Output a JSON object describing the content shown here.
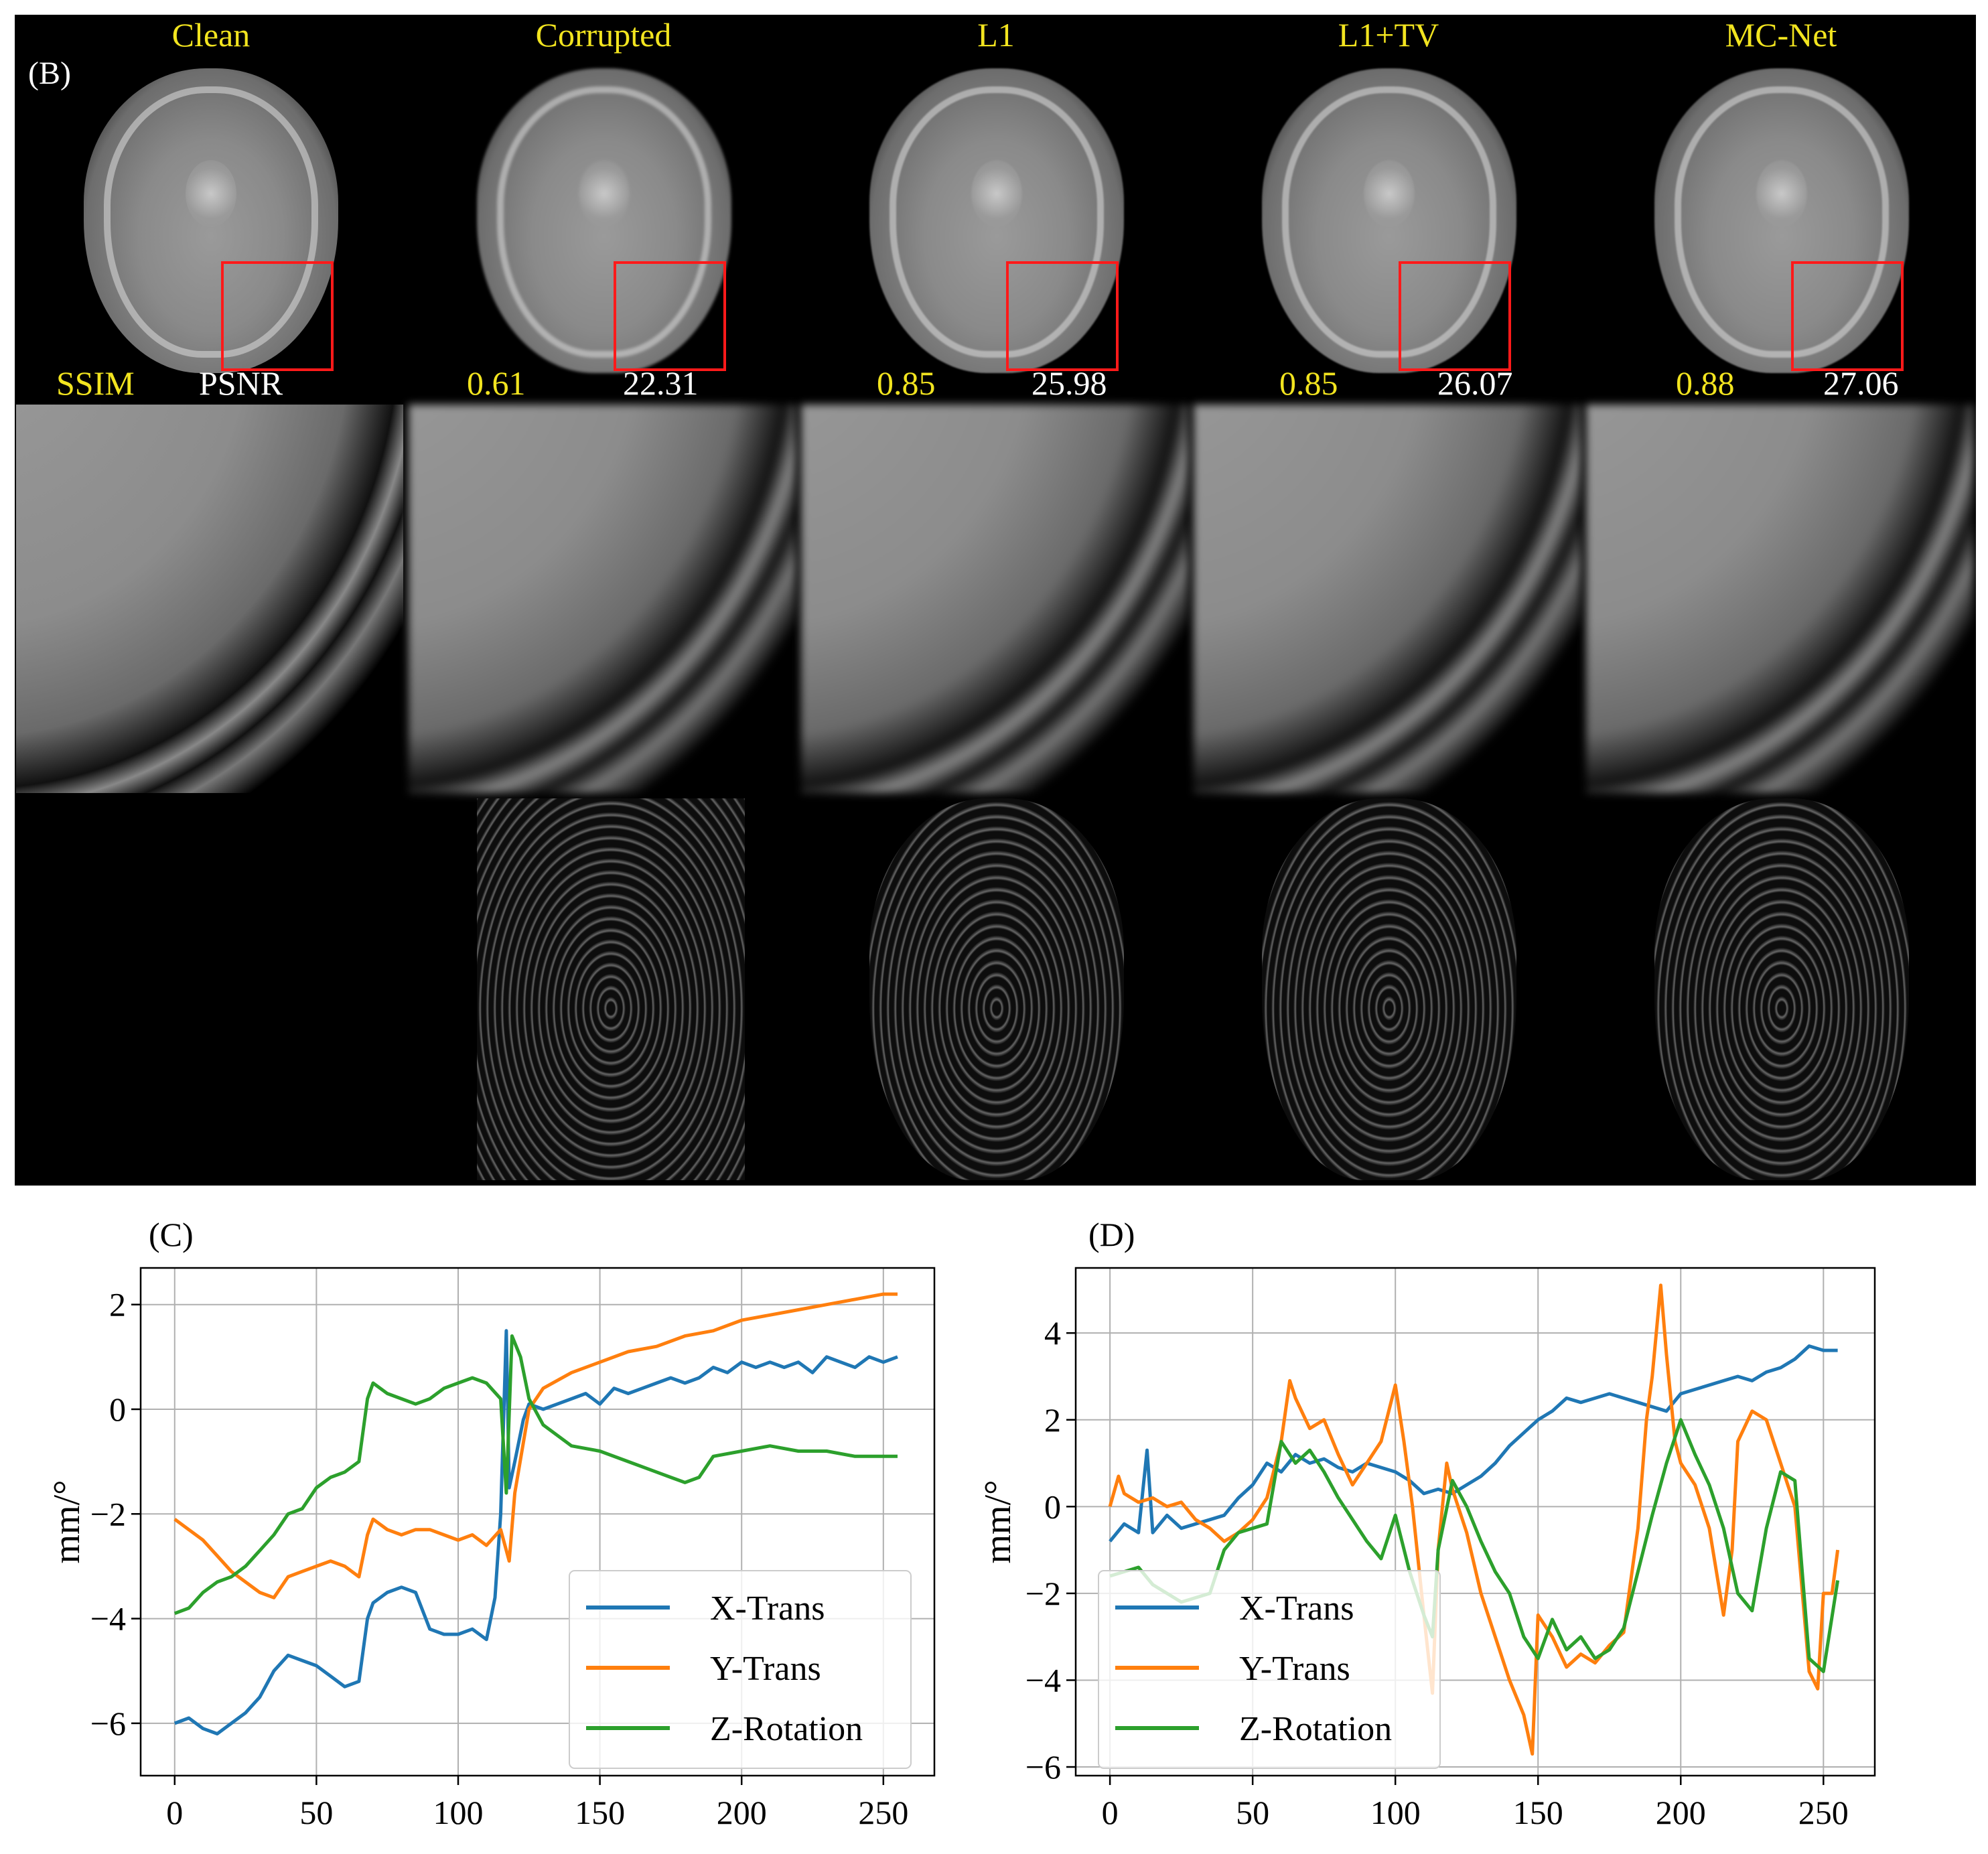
{
  "panel_b": {
    "label": "(B)",
    "columns": [
      {
        "title": "Clean",
        "ssim": "SSIM",
        "psnr": "PSNR"
      },
      {
        "title": "Corrupted",
        "ssim": "0.61",
        "psnr": "22.31"
      },
      {
        "title": "L1",
        "ssim": "0.85",
        "psnr": "25.98"
      },
      {
        "title": "L1+TV",
        "ssim": "0.85",
        "psnr": "26.07"
      },
      {
        "title": "MC-Net",
        "ssim": "0.88",
        "psnr": "27.06"
      }
    ]
  },
  "colors": {
    "x_trans": "#1f77b4",
    "y_trans": "#ff7f0e",
    "z_rotation": "#2ca02c",
    "title_yellow": "#f2e41f",
    "roi_red": "#ff1a1a"
  },
  "chart_data": [
    {
      "panel_label": "(C)",
      "type": "line",
      "xlabel": "",
      "ylabel": "mm/°",
      "xlim": [
        -12,
        268
      ],
      "ylim": [
        -7,
        2.7
      ],
      "xticks": [
        0,
        50,
        100,
        150,
        200,
        250
      ],
      "yticks": [
        -6,
        -4,
        -2,
        0,
        2
      ],
      "grid": true,
      "legend": "lower-right",
      "series": [
        {
          "name": "X-Trans",
          "color": "#1f77b4",
          "x": [
            0,
            5,
            10,
            15,
            20,
            25,
            30,
            35,
            40,
            45,
            50,
            55,
            60,
            65,
            68,
            70,
            75,
            80,
            85,
            90,
            95,
            100,
            105,
            110,
            113,
            115,
            117,
            118,
            120,
            123,
            125,
            130,
            135,
            140,
            145,
            150,
            155,
            160,
            165,
            170,
            175,
            180,
            185,
            190,
            195,
            200,
            205,
            210,
            215,
            220,
            225,
            230,
            235,
            240,
            245,
            250,
            255
          ],
          "y": [
            -6.0,
            -5.9,
            -6.1,
            -6.2,
            -6.0,
            -5.8,
            -5.5,
            -5.0,
            -4.7,
            -4.8,
            -4.9,
            -5.1,
            -5.3,
            -5.2,
            -4.0,
            -3.7,
            -3.5,
            -3.4,
            -3.5,
            -4.2,
            -4.3,
            -4.3,
            -4.2,
            -4.4,
            -3.6,
            -2.0,
            1.5,
            -1.5,
            -1.0,
            -0.2,
            0.1,
            0.0,
            0.1,
            0.2,
            0.3,
            0.1,
            0.4,
            0.3,
            0.4,
            0.5,
            0.6,
            0.5,
            0.6,
            0.8,
            0.7,
            0.9,
            0.8,
            0.9,
            0.8,
            0.9,
            0.7,
            1.0,
            0.9,
            0.8,
            1.0,
            0.9,
            1.0
          ]
        },
        {
          "name": "Y-Trans",
          "color": "#ff7f0e",
          "x": [
            0,
            5,
            10,
            15,
            20,
            25,
            30,
            35,
            40,
            45,
            50,
            55,
            60,
            65,
            68,
            70,
            75,
            80,
            85,
            90,
            95,
            100,
            105,
            110,
            115,
            118,
            120,
            125,
            130,
            140,
            150,
            160,
            170,
            180,
            190,
            200,
            210,
            220,
            230,
            240,
            250,
            255
          ],
          "y": [
            -2.1,
            -2.3,
            -2.5,
            -2.8,
            -3.1,
            -3.3,
            -3.5,
            -3.6,
            -3.2,
            -3.1,
            -3.0,
            -2.9,
            -3.0,
            -3.2,
            -2.4,
            -2.1,
            -2.3,
            -2.4,
            -2.3,
            -2.3,
            -2.4,
            -2.5,
            -2.4,
            -2.6,
            -2.3,
            -2.9,
            -1.6,
            0.0,
            0.4,
            0.7,
            0.9,
            1.1,
            1.2,
            1.4,
            1.5,
            1.7,
            1.8,
            1.9,
            2.0,
            2.1,
            2.2,
            2.2
          ]
        },
        {
          "name": "Z-Rotation",
          "color": "#2ca02c",
          "x": [
            0,
            5,
            10,
            15,
            20,
            25,
            30,
            35,
            40,
            45,
            50,
            55,
            60,
            65,
            68,
            70,
            75,
            80,
            85,
            90,
            95,
            100,
            105,
            110,
            115,
            117,
            119,
            122,
            125,
            130,
            140,
            150,
            160,
            170,
            175,
            180,
            185,
            190,
            200,
            210,
            220,
            230,
            240,
            250,
            255
          ],
          "y": [
            -3.9,
            -3.8,
            -3.5,
            -3.3,
            -3.2,
            -3.0,
            -2.7,
            -2.4,
            -2.0,
            -1.9,
            -1.5,
            -1.3,
            -1.2,
            -1.0,
            0.2,
            0.5,
            0.3,
            0.2,
            0.1,
            0.2,
            0.4,
            0.5,
            0.6,
            0.5,
            0.2,
            -1.6,
            1.4,
            1.0,
            0.2,
            -0.3,
            -0.7,
            -0.8,
            -1.0,
            -1.2,
            -1.3,
            -1.4,
            -1.3,
            -0.9,
            -0.8,
            -0.7,
            -0.8,
            -0.8,
            -0.9,
            -0.9,
            -0.9
          ]
        }
      ]
    },
    {
      "panel_label": "(D)",
      "type": "line",
      "xlabel": "",
      "ylabel": "mm/°",
      "xlim": [
        -12,
        268
      ],
      "ylim": [
        -6.2,
        5.5
      ],
      "xticks": [
        0,
        50,
        100,
        150,
        200,
        250
      ],
      "yticks": [
        -6,
        -4,
        -2,
        0,
        2,
        4
      ],
      "grid": true,
      "legend": "lower-left",
      "series": [
        {
          "name": "X-Trans",
          "color": "#1f77b4",
          "x": [
            0,
            5,
            10,
            13,
            15,
            20,
            25,
            30,
            35,
            40,
            45,
            50,
            55,
            60,
            65,
            70,
            75,
            80,
            85,
            90,
            95,
            100,
            105,
            110,
            115,
            120,
            125,
            130,
            135,
            140,
            145,
            150,
            155,
            160,
            165,
            170,
            175,
            180,
            185,
            190,
            195,
            200,
            205,
            210,
            215,
            220,
            225,
            230,
            235,
            240,
            245,
            250,
            255
          ],
          "y": [
            -0.8,
            -0.4,
            -0.6,
            1.3,
            -0.6,
            -0.2,
            -0.5,
            -0.4,
            -0.3,
            -0.2,
            0.2,
            0.5,
            1.0,
            0.8,
            1.2,
            1.0,
            1.1,
            0.9,
            0.8,
            1.0,
            0.9,
            0.8,
            0.6,
            0.3,
            0.4,
            0.3,
            0.5,
            0.7,
            1.0,
            1.4,
            1.7,
            2.0,
            2.2,
            2.5,
            2.4,
            2.5,
            2.6,
            2.5,
            2.4,
            2.3,
            2.2,
            2.6,
            2.7,
            2.8,
            2.9,
            3.0,
            2.9,
            3.1,
            3.2,
            3.4,
            3.7,
            3.6,
            3.6
          ]
        },
        {
          "name": "Y-Trans",
          "color": "#ff7f0e",
          "x": [
            0,
            3,
            5,
            10,
            15,
            20,
            25,
            30,
            35,
            40,
            45,
            50,
            55,
            60,
            63,
            65,
            70,
            75,
            80,
            85,
            90,
            95,
            100,
            103,
            106,
            110,
            113,
            115,
            118,
            120,
            125,
            130,
            135,
            140,
            145,
            148,
            150,
            155,
            160,
            165,
            170,
            175,
            180,
            185,
            188,
            190,
            193,
            195,
            198,
            200,
            205,
            210,
            215,
            218,
            220,
            225,
            230,
            235,
            240,
            245,
            248,
            250,
            253,
            255
          ],
          "y": [
            0.0,
            0.7,
            0.3,
            0.1,
            0.2,
            0.0,
            0.1,
            -0.3,
            -0.5,
            -0.8,
            -0.6,
            -0.3,
            0.2,
            1.5,
            2.9,
            2.5,
            1.8,
            2.0,
            1.2,
            0.5,
            1.0,
            1.5,
            2.8,
            1.5,
            0.0,
            -2.5,
            -4.3,
            -1.0,
            1.0,
            0.4,
            -0.6,
            -2.0,
            -3.0,
            -4.0,
            -4.8,
            -5.7,
            -2.5,
            -3.0,
            -3.7,
            -3.4,
            -3.6,
            -3.2,
            -2.9,
            -0.5,
            2.0,
            3.0,
            5.1,
            3.5,
            1.5,
            1.0,
            0.5,
            -0.5,
            -2.5,
            -1.0,
            1.5,
            2.2,
            2.0,
            1.0,
            0.0,
            -3.8,
            -4.2,
            -2.0,
            -2.0,
            -1.0
          ]
        },
        {
          "name": "Z-Rotation",
          "color": "#2ca02c",
          "x": [
            0,
            5,
            10,
            15,
            20,
            25,
            30,
            35,
            40,
            45,
            50,
            55,
            60,
            65,
            70,
            75,
            80,
            85,
            90,
            95,
            100,
            105,
            110,
            113,
            115,
            120,
            125,
            130,
            135,
            140,
            145,
            150,
            155,
            160,
            165,
            170,
            175,
            180,
            185,
            190,
            195,
            200,
            205,
            210,
            215,
            220,
            225,
            230,
            235,
            240,
            245,
            250,
            255
          ],
          "y": [
            -1.6,
            -1.5,
            -1.4,
            -1.8,
            -2.0,
            -2.2,
            -2.1,
            -2.0,
            -1.0,
            -0.6,
            -0.5,
            -0.4,
            1.5,
            1.0,
            1.3,
            0.8,
            0.2,
            -0.3,
            -0.8,
            -1.2,
            -0.2,
            -1.5,
            -2.5,
            -3.0,
            -1.0,
            0.6,
            0.0,
            -0.8,
            -1.5,
            -2.0,
            -3.0,
            -3.5,
            -2.6,
            -3.3,
            -3.0,
            -3.5,
            -3.3,
            -2.8,
            -1.5,
            -0.2,
            1.0,
            2.0,
            1.2,
            0.5,
            -0.5,
            -2.0,
            -2.4,
            -0.5,
            0.8,
            0.6,
            -3.5,
            -3.8,
            -1.7
          ]
        }
      ]
    }
  ]
}
